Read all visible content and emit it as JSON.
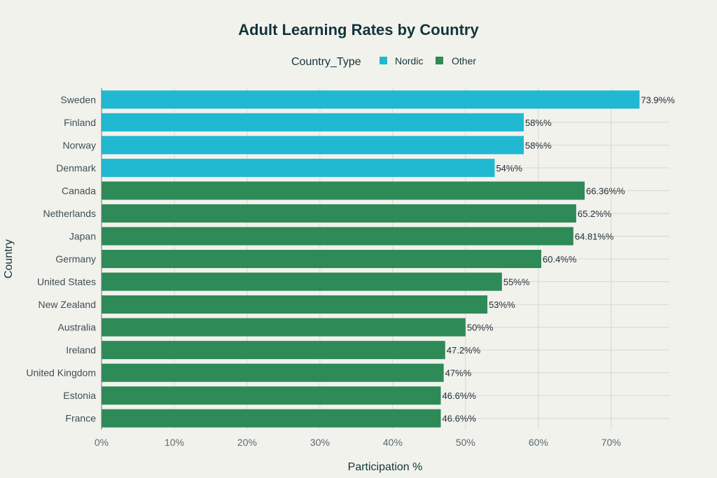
{
  "chart_data": {
    "type": "bar",
    "orientation": "horizontal",
    "title": "Adult Learning Rates by Country",
    "xlabel": "Participation %",
    "ylabel": "Country",
    "xlim": [
      0,
      78
    ],
    "xticks": [
      0,
      10,
      20,
      30,
      40,
      50,
      60,
      70
    ],
    "tick_suffix": "%",
    "legend": {
      "title": "Country_Type",
      "placement": "top-center",
      "entries": [
        {
          "name": "Nordic",
          "color": "#21b8d1"
        },
        {
          "name": "Other",
          "color": "#2e8a57"
        }
      ]
    },
    "categories": [
      "Sweden",
      "Finland",
      "Norway",
      "Denmark",
      "Canada",
      "Netherlands",
      "Japan",
      "Germany",
      "United States",
      "New Zealand",
      "Australia",
      "Ireland",
      "United Kingdom",
      "Estonia",
      "France"
    ],
    "values": [
      73.9,
      58,
      58,
      54,
      66.36,
      65.2,
      64.81,
      60.4,
      55,
      53,
      50,
      47.2,
      47,
      46.6,
      46.6
    ],
    "groups": [
      "Nordic",
      "Nordic",
      "Nordic",
      "Nordic",
      "Other",
      "Other",
      "Other",
      "Other",
      "Other",
      "Other",
      "Other",
      "Other",
      "Other",
      "Other",
      "Other"
    ],
    "data_labels": [
      "73.9%%",
      "58%%",
      "58%%",
      "54%%",
      "66.36%%",
      "65.2%%",
      "64.81%%",
      "60.4%%",
      "55%%",
      "53%%",
      "50%%",
      "47.2%%",
      "47%%",
      "46.6%%",
      "46.6%%"
    ]
  }
}
